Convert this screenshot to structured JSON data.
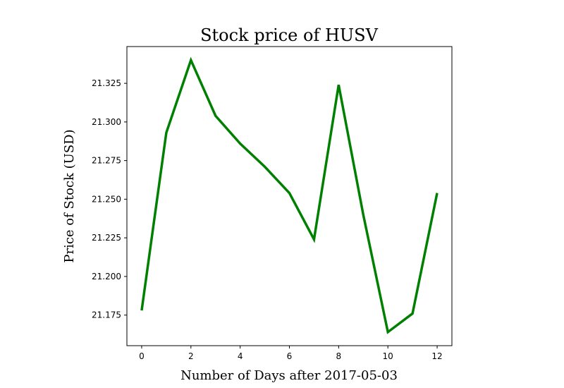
{
  "chart_data": {
    "type": "line",
    "title": "Stock price of HUSV",
    "xlabel": "Number of Days after 2017-05-03",
    "ylabel": "Price of Stock (USD)",
    "x": [
      0,
      1,
      2,
      3,
      4,
      5,
      6,
      7,
      8,
      9,
      10,
      11,
      12
    ],
    "series": [
      {
        "values": [
          21.178,
          21.293,
          21.34,
          21.304,
          21.286,
          21.271,
          21.254,
          21.224,
          21.324,
          21.24,
          21.164,
          21.176,
          21.254
        ],
        "color": "#008000"
      }
    ],
    "xticks": [
      0,
      2,
      4,
      6,
      8,
      10,
      12
    ],
    "yticks": [
      21.175,
      21.2,
      21.225,
      21.25,
      21.275,
      21.3,
      21.325
    ],
    "ytick_labels": [
      "21.175",
      "21.200",
      "21.225",
      "21.250",
      "21.275",
      "21.300",
      "21.325"
    ],
    "xlim": [
      -0.6,
      12.6
    ],
    "ylim": [
      21.1552,
      21.3488
    ],
    "grid": false,
    "legend": false
  }
}
